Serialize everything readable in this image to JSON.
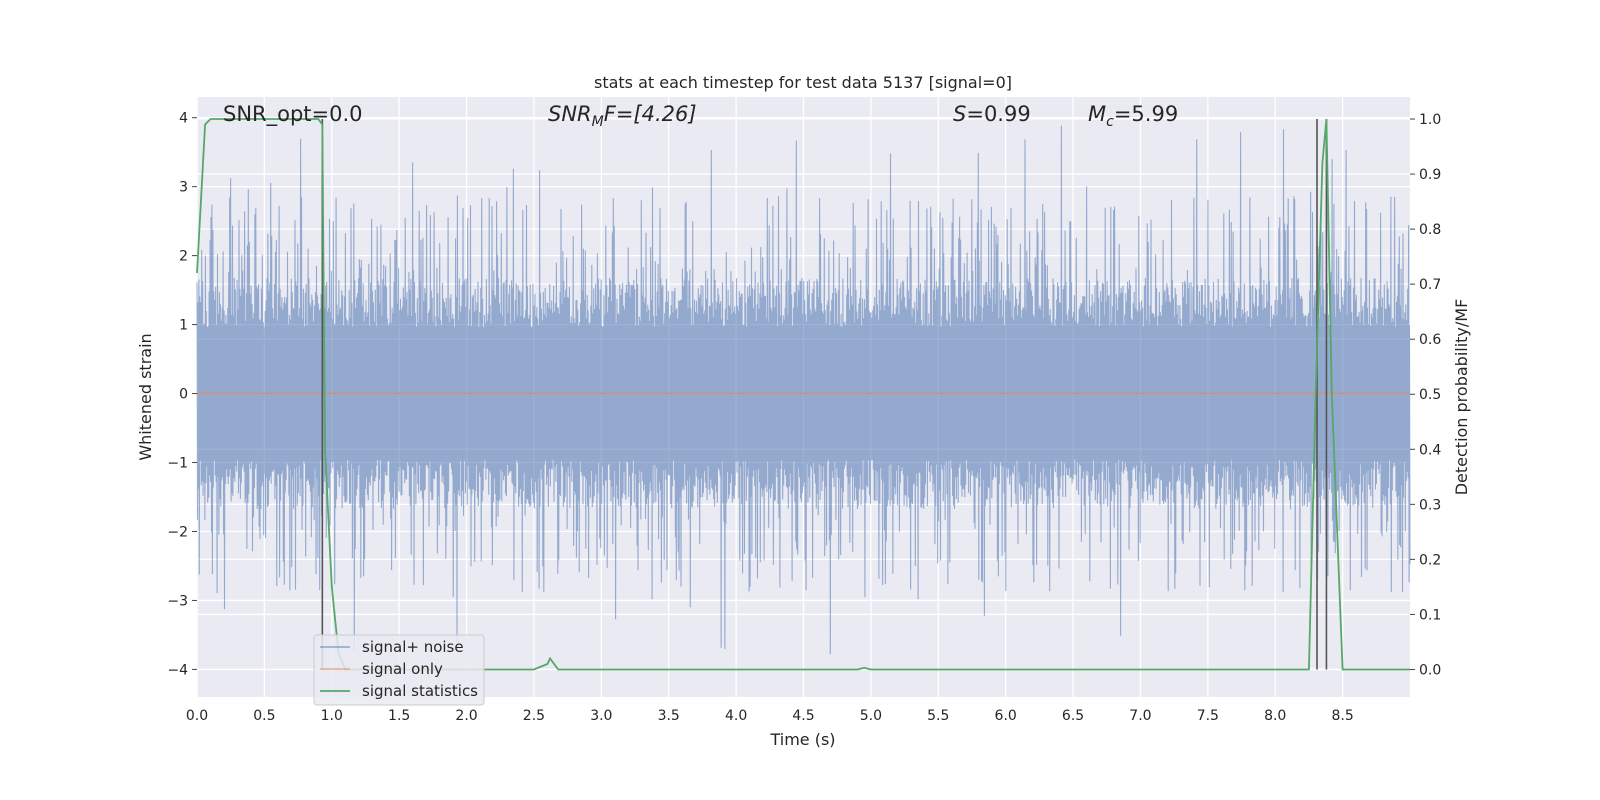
{
  "chart_data": {
    "type": "line",
    "title": "stats at each timestep for test data 5137 [signal=0]",
    "xlabel": "Time (s)",
    "ylabel": "Whitened strain",
    "ylabel_right": "Detection probability/MF",
    "xlim": [
      0,
      9.0
    ],
    "ylim": [
      -4.4,
      4.3
    ],
    "ylim_right": [
      -0.05,
      1.04
    ],
    "xticks": [
      "0.0",
      "0.5",
      "1.0",
      "1.5",
      "2.0",
      "2.5",
      "3.0",
      "3.5",
      "4.0",
      "4.5",
      "5.0",
      "5.5",
      "6.0",
      "6.5",
      "7.0",
      "7.5",
      "8.0",
      "8.5"
    ],
    "yticks": [
      "−4",
      "−3",
      "−2",
      "−1",
      "0",
      "1",
      "2",
      "3",
      "4"
    ],
    "yticks_right": [
      "0.0",
      "0.1",
      "0.2",
      "0.3",
      "0.4",
      "0.5",
      "0.6",
      "0.7",
      "0.8",
      "0.9",
      "1.0"
    ],
    "grid": true,
    "legend_position": "lower-left",
    "annotations": {
      "snr_opt": "SNR_opt=0.0",
      "snr_mf_prefix": "SNR",
      "snr_mf_sub": "M",
      "snr_mf_suffix": "F=[4.26]",
      "s_sym": "S",
      "s_val": "=0.99",
      "mc_sym": "M",
      "mc_sub": "c",
      "mc_val": "=5.99"
    },
    "series": [
      {
        "name": "signal+ noise",
        "color": "#4c72b0",
        "description": "dense whitened strain noise, approx. amplitude band",
        "envelope": {
          "x": [
            0,
            9.0
          ],
          "typical_range": [
            -1.6,
            1.6
          ],
          "peak_range": [
            -3.8,
            3.9
          ]
        }
      },
      {
        "name": "signal only",
        "color": "#dd8452",
        "x": [
          0,
          9.0
        ],
        "y": [
          0,
          0
        ]
      },
      {
        "name": "signal statistics",
        "color": "#55a868",
        "axis": "right",
        "x": [
          0.0,
          0.06,
          0.1,
          0.2,
          0.9,
          0.93,
          0.95,
          1.0,
          1.05,
          1.1,
          2.5,
          2.6,
          2.62,
          2.68,
          4.9,
          4.95,
          5.0,
          8.25,
          8.3,
          8.35,
          8.38,
          8.42,
          8.5,
          9.0
        ],
        "y": [
          0.72,
          0.99,
          1.0,
          1.0,
          1.0,
          0.99,
          0.4,
          0.15,
          0.03,
          0.0,
          0.0,
          0.01,
          0.02,
          0.0,
          0.0,
          0.003,
          0.0,
          0.0,
          0.5,
          0.92,
          1.0,
          0.5,
          0.0,
          0.0
        ]
      }
    ],
    "vertical_lines_x": [
      0.93,
      8.31,
      8.38
    ],
    "vertical_lines_color": "#555555"
  }
}
